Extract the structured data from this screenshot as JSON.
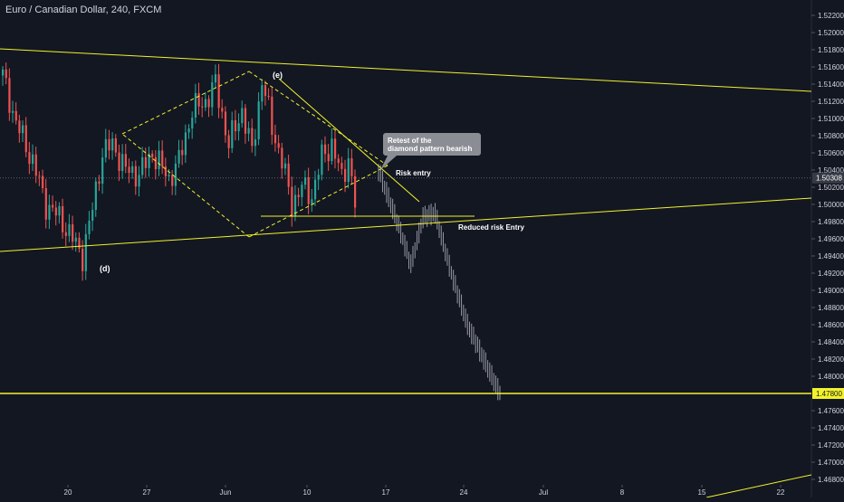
{
  "chart_title": "Euro / Canadian Dollar, 240, FXCM",
  "chart_data": {
    "type": "candlestick",
    "symbol": "EURCAD",
    "timeframe": "240",
    "source": "FXCM",
    "ylim": [
      1.468,
      1.524
    ],
    "y_ticks": [
      "1.52200",
      "1.52000",
      "1.51800",
      "1.51600",
      "1.51400",
      "1.51200",
      "1.51000",
      "1.50800",
      "1.50600",
      "1.50400",
      "1.50200",
      "1.50000",
      "1.49800",
      "1.49600",
      "1.49400",
      "1.49200",
      "1.49000",
      "1.48800",
      "1.48600",
      "1.48400",
      "1.48200",
      "1.48000",
      "1.47600",
      "1.47400",
      "1.47200",
      "1.47000",
      "1.46800"
    ],
    "y_tick_values": [
      1.522,
      1.52,
      1.518,
      1.516,
      1.514,
      1.512,
      1.51,
      1.508,
      1.506,
      1.504,
      1.502,
      1.5,
      1.498,
      1.496,
      1.494,
      1.492,
      1.49,
      1.488,
      1.486,
      1.484,
      1.482,
      1.48,
      1.476,
      1.474,
      1.472,
      1.47,
      1.468
    ],
    "x_ticks": [
      "20",
      "27",
      "Jun",
      "10",
      "17",
      "24",
      "Jul",
      "8",
      "15",
      "22"
    ],
    "current_price": "1.50308",
    "target_price": "1.47800",
    "annotations": [
      {
        "text": "(e)",
        "price": 1.5154
      },
      {
        "text": "(d)",
        "price": 1.4925
      },
      {
        "text": "Risk entry",
        "price": 1.5033
      },
      {
        "text": "Reduced risk Entry",
        "price": 1.4973
      }
    ],
    "callout": {
      "line1": "Retest of the",
      "line2": "diamond pattern bearish"
    },
    "colors": {
      "background": "#131722",
      "bull": "#26a69a",
      "bear": "#ef5350",
      "trendline": "#f2f22c",
      "projection": "#9598a1",
      "axis_text": "#d1d4dc"
    }
  }
}
